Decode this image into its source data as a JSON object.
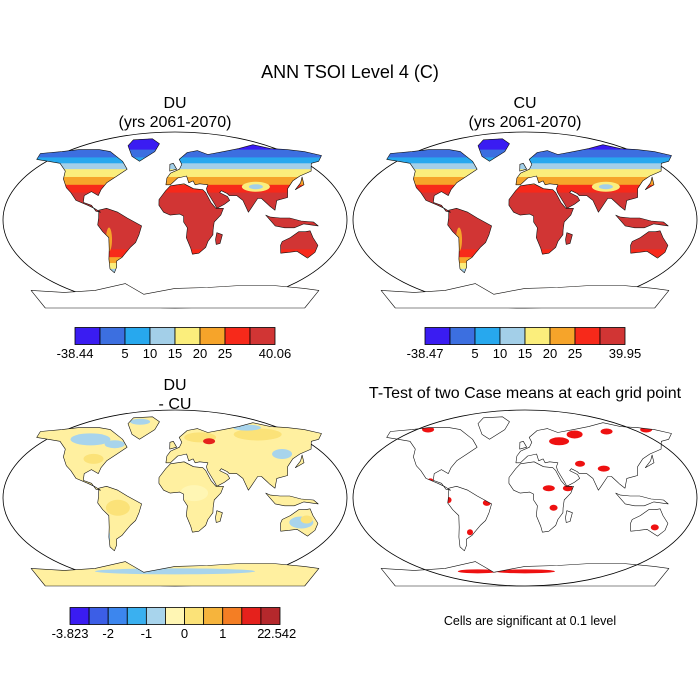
{
  "title": "ANN TSOI Level 4 (C)",
  "panels": [
    {
      "id": "du",
      "title_line1": "DU",
      "title_line2": "(yrs 2061-2070)",
      "colorbar": {
        "colors": [
          "#3a1cf2",
          "#3c6fe0",
          "#27a8ee",
          "#a3cfe8",
          "#fbee7c",
          "#f6a42a",
          "#f7291a",
          "#d13534"
        ],
        "labels": [
          "-38.44",
          "5",
          "10",
          "15",
          "20",
          "25",
          "40.06"
        ],
        "label_positions": [
          0,
          2,
          3,
          4,
          5,
          6,
          8
        ]
      }
    },
    {
      "id": "cu",
      "title_line1": "CU",
      "title_line2": "(yrs 2061-2070)",
      "colorbar": {
        "colors": [
          "#3a1cf2",
          "#3c6fe0",
          "#27a8ee",
          "#a3cfe8",
          "#fbee7c",
          "#f6a42a",
          "#f7291a",
          "#d13534"
        ],
        "labels": [
          "-38.47",
          "5",
          "10",
          "15",
          "20",
          "25",
          "39.95"
        ],
        "label_positions": [
          0,
          2,
          3,
          4,
          5,
          6,
          8
        ]
      }
    },
    {
      "id": "diff",
      "title_line1": "DU",
      "title_line2": "- CU",
      "colorbar": {
        "colors": [
          "#3a1cf2",
          "#3c5ee6",
          "#3c86ee",
          "#3ab0f0",
          "#a8d4ec",
          "#fff6b4",
          "#fbe278",
          "#f6b43c",
          "#f47e24",
          "#e5211c",
          "#b5282c"
        ],
        "labels": [
          "-3.823",
          "-2",
          "-1",
          "0",
          "1",
          "2",
          "2.542"
        ],
        "label_positions": [
          0,
          2,
          4,
          6,
          8,
          10,
          11
        ]
      }
    },
    {
      "id": "ttest",
      "title_line1": "T-Test of two Case means at each grid point",
      "note": "Cells are significant at 0.1 level"
    }
  ]
}
